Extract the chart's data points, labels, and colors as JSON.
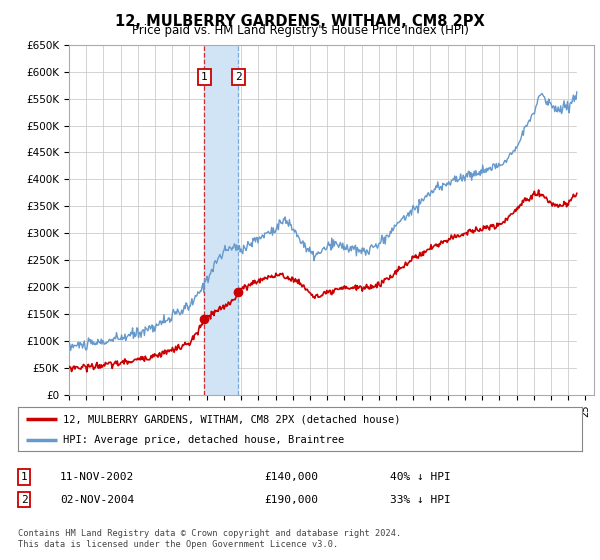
{
  "title": "12, MULBERRY GARDENS, WITHAM, CM8 2PX",
  "subtitle": "Price paid vs. HM Land Registry's House Price Index (HPI)",
  "sale1_date": 2002.87,
  "sale1_price": 140000,
  "sale1_label": "1",
  "sale1_text": "11-NOV-2002",
  "sale1_amount": "£140,000",
  "sale1_hpi": "40% ↓ HPI",
  "sale2_date": 2004.84,
  "sale2_price": 190000,
  "sale2_label": "2",
  "sale2_text": "02-NOV-2004",
  "sale2_amount": "£190,000",
  "sale2_hpi": "33% ↓ HPI",
  "legend_line1": "12, MULBERRY GARDENS, WITHAM, CM8 2PX (detached house)",
  "legend_line2": "HPI: Average price, detached house, Braintree",
  "footer": "Contains HM Land Registry data © Crown copyright and database right 2024.\nThis data is licensed under the Open Government Licence v3.0.",
  "ylim": [
    0,
    650000
  ],
  "yticks": [
    0,
    50000,
    100000,
    150000,
    200000,
    250000,
    300000,
    350000,
    400000,
    450000,
    500000,
    550000,
    600000,
    650000
  ],
  "xlim_start": 1995.0,
  "xlim_end": 2025.5,
  "red_color": "#cc0000",
  "blue_color": "#6699cc",
  "shade_color": "#d0e4f5",
  "grid_color": "#cccccc",
  "bg_color": "#ffffff"
}
